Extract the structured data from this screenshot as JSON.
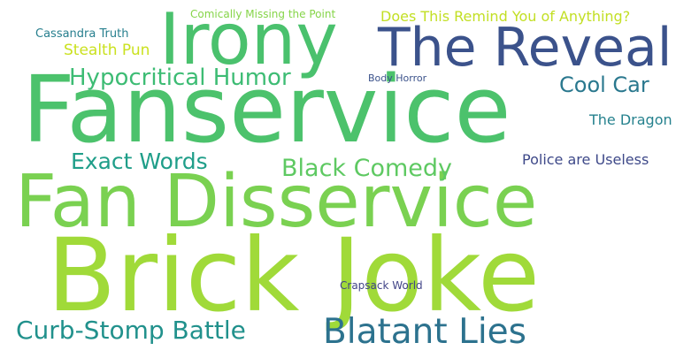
{
  "words": [
    {
      "text": "Brick Joke",
      "color": "#a0da39"
    },
    {
      "text": "Fanservice",
      "color": "#4cc26c"
    },
    {
      "text": "Fan Disservice",
      "color": "#7ad151"
    },
    {
      "text": "Irony",
      "color": "#4ac16d"
    },
    {
      "text": "The Reveal",
      "color": "#3b528b"
    },
    {
      "text": "Blatant Lies",
      "color": "#2c728e"
    },
    {
      "text": "Curb-Stomp Battle",
      "color": "#21918c"
    },
    {
      "text": "Black Comedy",
      "color": "#5ec962"
    },
    {
      "text": "Hypocritical Humor",
      "color": "#3dbc74"
    },
    {
      "text": "Exact Words",
      "color": "#1f9e89"
    },
    {
      "text": "Cool Car",
      "color": "#2a788e"
    },
    {
      "text": "The Dragon",
      "color": "#26828e"
    },
    {
      "text": "Police are Useless",
      "color": "#3e4989"
    },
    {
      "text": "Stealth Pun",
      "color": "#cae11f"
    },
    {
      "text": "Does This Remind You of Anything?",
      "color": "#c2df23"
    },
    {
      "text": "Comically Missing the Point",
      "color": "#86d549"
    },
    {
      "text": "Cassandra Truth",
      "color": "#277f8e"
    },
    {
      "text": "Body Horror",
      "color": "#3b528b"
    },
    {
      "text": "Crapsack World",
      "color": "#414487"
    }
  ]
}
